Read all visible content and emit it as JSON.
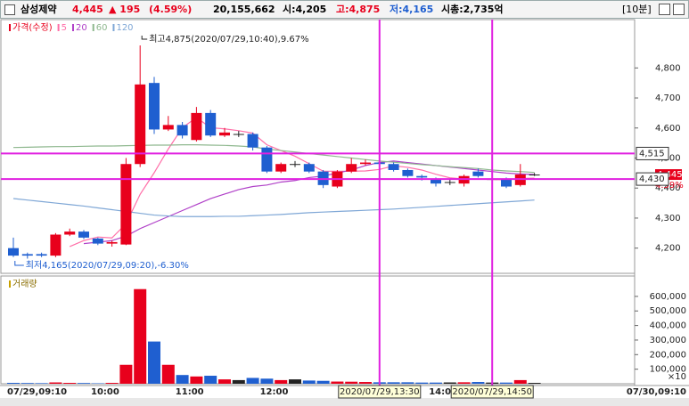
{
  "header": {
    "name": "삼성제약",
    "price": "4,445",
    "change": "▲ 195",
    "change_pct": "(4.59%)",
    "volume": "20,155,662",
    "open": "시:4,205",
    "high": "고:4,875",
    "low": "저:4,165",
    "market_cap": "시총:2,735억",
    "interval": "[10분]"
  },
  "chart_data": [
    {
      "type": "candlestick",
      "categories": [
        "07/29,09:10",
        null,
        null,
        null,
        null,
        "10:00",
        null,
        null,
        null,
        null,
        null,
        "11:00",
        null,
        null,
        null,
        null,
        null,
        "12:00",
        null,
        null,
        null,
        null,
        null,
        null,
        null,
        null,
        null,
        null,
        null,
        "14:00",
        null,
        null,
        null,
        null,
        null,
        null,
        null,
        null
      ],
      "x_end_label": "07/30,09:10",
      "series": [
        {
          "name": "가격(수정)",
          "color_up": "#e8001c",
          "color_down": "#1f5fd0",
          "open": [
            4200,
            4180,
            4180,
            4175,
            4245,
            4255,
            4232,
            4215,
            4212,
            4480,
            4750,
            4595,
            4610,
            4560,
            4650,
            4575,
            4580,
            4580,
            4535,
            4455,
            4480,
            4480,
            4455,
            4405,
            4455,
            4480,
            4485,
            4480,
            4460,
            4440,
            4430,
            4420,
            4415,
            4455,
            4430,
            4430,
            4410,
            4445
          ],
          "high": [
            4235,
            4185,
            4185,
            4250,
            4265,
            4260,
            4235,
            4225,
            4500,
            4875,
            4770,
            4640,
            4620,
            4670,
            4660,
            4600,
            4590,
            4585,
            4540,
            4485,
            4490,
            4485,
            4460,
            4460,
            4500,
            4495,
            4490,
            4485,
            4465,
            4445,
            4435,
            4430,
            4445,
            4465,
            4440,
            4435,
            4480,
            4450
          ],
          "low": [
            4170,
            4165,
            4170,
            4170,
            4240,
            4230,
            4210,
            4205,
            4210,
            4470,
            4580,
            4590,
            4565,
            4555,
            4570,
            4570,
            4570,
            4525,
            4450,
            4450,
            4470,
            4450,
            4400,
            4400,
            4450,
            4475,
            4470,
            4455,
            4435,
            4425,
            4405,
            4410,
            4405,
            4435,
            4425,
            4400,
            4405,
            4440
          ],
          "close": [
            4175,
            4175,
            4175,
            4245,
            4255,
            4235,
            4215,
            4220,
            4480,
            4745,
            4595,
            4610,
            4575,
            4650,
            4575,
            4585,
            4580,
            4535,
            4455,
            4480,
            4480,
            4455,
            4410,
            4455,
            4480,
            4485,
            4480,
            4460,
            4440,
            4435,
            4415,
            4420,
            4440,
            4440,
            4430,
            4405,
            4445,
            4445
          ]
        },
        {
          "name": "5",
          "color": "#ff6fa8",
          "values": [
            null,
            null,
            null,
            null,
            4205,
            4225,
            4237,
            4234,
            4281,
            4379,
            4451,
            4530,
            4601,
            4635,
            4601,
            4597,
            4591,
            4583,
            4544,
            4525,
            4506,
            4481,
            4456,
            4456,
            4456,
            4457,
            4462,
            4474,
            4469,
            4460,
            4446,
            4434,
            4430,
            4430,
            4429,
            4427,
            4432,
            4433
          ]
        },
        {
          "name": "20",
          "color": "#b040c8",
          "values": [
            null,
            null,
            null,
            null,
            null,
            4215,
            4220,
            4225,
            4240,
            4265,
            4285,
            4305,
            4325,
            4345,
            4365,
            4380,
            4395,
            4405,
            4410,
            4420,
            4425,
            4435,
            4440,
            4450,
            4460,
            4475,
            4485,
            4490,
            4485,
            4480,
            4475,
            4470,
            4465,
            4460,
            4455,
            4450,
            4447,
            4445
          ]
        },
        {
          "name": "60",
          "color": "#8fb88f",
          "values": [
            4535,
            4536,
            4537,
            4538,
            4538,
            4539,
            4540,
            4540,
            4541,
            4542,
            4543,
            4543,
            4544,
            4544,
            4543,
            4542,
            4540,
            4537,
            4530,
            4525,
            4520,
            4515,
            4510,
            4505,
            4500,
            4495,
            4490,
            4486,
            4482,
            4478,
            4475,
            4471,
            4468,
            4465,
            4460,
            4457,
            4455,
            4452
          ]
        },
        {
          "name": "120",
          "color": "#7fa7d6",
          "values": [
            4365,
            4360,
            4355,
            4350,
            4345,
            4340,
            4334,
            4328,
            4322,
            4316,
            4310,
            4307,
            4305,
            4305,
            4305,
            4306,
            4306,
            4308,
            4310,
            4312,
            4315,
            4318,
            4320,
            4322,
            4324,
            4326,
            4328,
            4330,
            4333,
            4336,
            4339,
            4342,
            4345,
            4348,
            4351,
            4354,
            4357,
            4360
          ]
        }
      ],
      "ylim": [
        4116,
        4961
      ],
      "yticks": [
        {
          "value": 4200,
          "label": "4,200"
        },
        {
          "value": 4300,
          "label": "4,300"
        },
        {
          "value": 4400,
          "label": "4,400"
        },
        {
          "value": 4500,
          "label": "4,500"
        },
        {
          "value": 4600,
          "label": "4,600"
        },
        {
          "value": 4700,
          "label": "4,700"
        },
        {
          "value": 4800,
          "label": "4,800"
        }
      ],
      "grid": false,
      "annotations": {
        "max": "최고4,875(2020/07/29,10:40),9.67%",
        "min": "최저4,165(2020/07/29,09:20),-6.30%"
      },
      "crosshair_y": [
        {
          "value": 4515,
          "label": "4,515"
        },
        {
          "value": 4430,
          "label": "4,430"
        }
      ],
      "crosshair_x": [
        "2020/07/29,13:30",
        "2020/07/29,14:50"
      ],
      "last_price": {
        "value": 4445,
        "label": "4,445"
      },
      "last_pct": "4.59%",
      "crosshair_color": "#e020e0"
    },
    {
      "type": "bar",
      "series": [
        {
          "name": "거래량",
          "values": [
            6000,
            5000,
            4000,
            9000,
            6000,
            5000,
            3000,
            6000,
            130000,
            650000,
            290000,
            130000,
            60000,
            50000,
            55000,
            30000,
            25000,
            40000,
            35000,
            25000,
            30000,
            22000,
            20000,
            15000,
            14000,
            12000,
            10000,
            10000,
            10000,
            8000,
            8000,
            9000,
            10000,
            12000,
            8000,
            8000,
            25000,
            6000
          ]
        }
      ],
      "ylim": [
        0,
        740000
      ],
      "yticks": [
        {
          "value": 100000,
          "label": "100,000"
        },
        {
          "value": 200000,
          "label": "200,000"
        },
        {
          "value": 300000,
          "label": "300,000"
        },
        {
          "value": 400000,
          "label": "400,000"
        },
        {
          "value": 500000,
          "label": "500,000"
        },
        {
          "value": 600000,
          "label": "600,000"
        }
      ],
      "unit": "×10"
    }
  ]
}
